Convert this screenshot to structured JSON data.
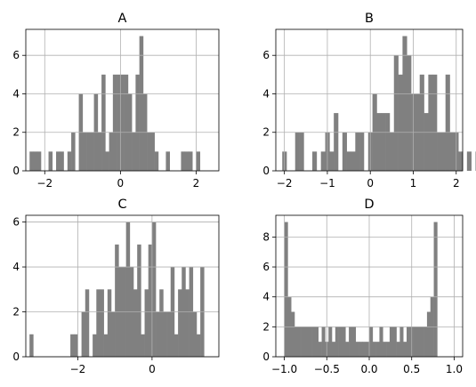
{
  "chart_data": [
    {
      "type": "bar",
      "title": "A",
      "xlim": [
        -2.5,
        2.6
      ],
      "ylim": [
        0,
        7.35
      ],
      "xticks": [
        -2,
        0,
        2
      ],
      "xtick_labels": [
        "−2",
        "0",
        "2"
      ],
      "yticks": [
        0,
        2,
        4,
        6
      ],
      "ytick_labels": [
        "0",
        "2",
        "4",
        "6"
      ],
      "grid": true,
      "bin_start": -2.4,
      "bin_width": 0.1,
      "values": [
        1,
        1,
        1,
        0,
        0,
        1,
        0,
        1,
        1,
        0,
        1,
        2,
        0,
        4,
        2,
        2,
        2,
        4,
        2,
        5,
        1,
        2,
        5,
        5,
        5,
        5,
        4,
        2,
        5,
        7,
        4,
        2,
        2,
        1,
        0,
        0,
        1,
        0,
        0,
        0,
        1,
        1,
        1,
        0,
        1
      ]
    },
    {
      "type": "bar",
      "title": "B",
      "xlim": [
        -2.2,
        2.15
      ],
      "ylim": [
        0,
        7.35
      ],
      "xticks": [
        -2,
        -1,
        0,
        1,
        2
      ],
      "xtick_labels": [
        "−2",
        "−1",
        "0",
        "1",
        "2"
      ],
      "yticks": [
        0,
        2,
        4,
        6
      ],
      "ytick_labels": [
        "0",
        "2",
        "4",
        "6"
      ],
      "grid": true,
      "bin_start": -2.05,
      "bin_width": 0.1,
      "values": [
        1,
        0,
        0,
        2,
        2,
        0,
        0,
        1,
        0,
        1,
        2,
        1,
        3,
        0,
        2,
        1,
        1,
        2,
        2,
        0,
        2,
        4,
        3,
        3,
        3,
        2,
        6,
        5,
        7,
        6,
        4,
        4,
        5,
        3,
        5,
        5,
        2,
        2,
        5,
        2,
        2,
        1,
        0,
        1,
        0,
        1,
        2
      ]
    },
    {
      "type": "bar",
      "title": "C",
      "xlim": [
        -3.4,
        1.8
      ],
      "ylim": [
        0,
        6.3
      ],
      "xticks": [
        -2,
        0
      ],
      "xtick_labels": [
        "−2",
        "0"
      ],
      "yticks": [
        0,
        2,
        4,
        6
      ],
      "ytick_labels": [
        "0",
        "2",
        "4",
        "6"
      ],
      "grid": true,
      "bin_start": -3.3,
      "bin_width": 0.1,
      "values": [
        1,
        0,
        0,
        0,
        0,
        0,
        0,
        0,
        0,
        0,
        0,
        1,
        1,
        0,
        2,
        3,
        0,
        1,
        3,
        3,
        1,
        3,
        2,
        5,
        4,
        4,
        6,
        4,
        3,
        5,
        1,
        3,
        5,
        6,
        2,
        3,
        2,
        2,
        4,
        1,
        3,
        4,
        3,
        4,
        2,
        1,
        4
      ]
    },
    {
      "type": "bar",
      "title": "D",
      "xlim": [
        -1.1,
        1.1
      ],
      "ylim": [
        0,
        9.45
      ],
      "xticks": [
        -1.0,
        -0.5,
        0.0,
        0.5,
        1.0
      ],
      "xtick_labels": [
        "−1.0",
        "−0.5",
        "0.0",
        "0.5",
        "1.0"
      ],
      "yticks": [
        0,
        2,
        4,
        6,
        8
      ],
      "ytick_labels": [
        "0",
        "2",
        "4",
        "6",
        "8"
      ],
      "grid": true,
      "bin_start": -1.0,
      "bin_width": 0.04,
      "values": [
        9,
        4,
        3,
        2,
        2,
        2,
        2,
        2,
        2,
        2,
        1,
        2,
        1,
        2,
        1,
        2,
        2,
        2,
        1,
        2,
        2,
        1,
        1,
        1,
        1,
        2,
        1,
        1,
        2,
        1,
        1,
        2,
        2,
        1,
        2,
        1,
        2,
        2,
        2,
        2,
        2,
        2,
        3,
        4,
        9
      ]
    }
  ]
}
